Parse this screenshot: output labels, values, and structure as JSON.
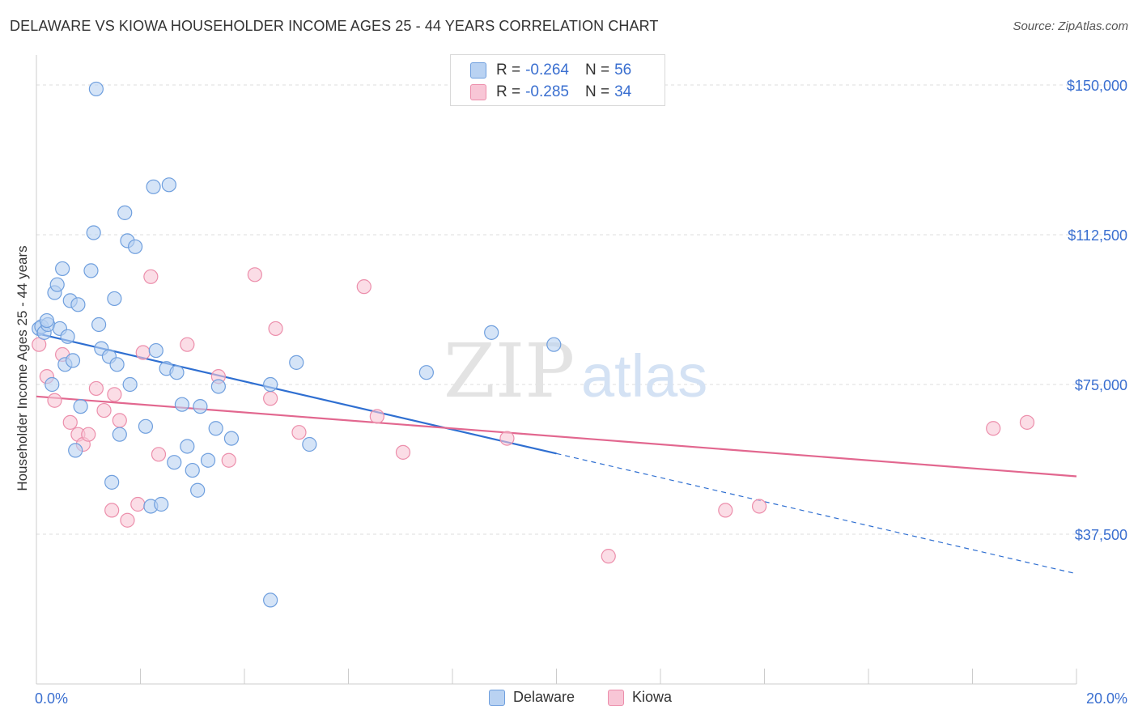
{
  "header": {
    "title": "DELAWARE VS KIOWA HOUSEHOLDER INCOME AGES 25 - 44 YEARS CORRELATION CHART",
    "source": "Source: ZipAtlas.com"
  },
  "watermark": {
    "part1": "ZIP",
    "part2": "atlas"
  },
  "legend": {
    "r_label": "R =",
    "n_label": "N =",
    "rows": [
      {
        "r": "-0.264",
        "n": "56"
      },
      {
        "r": "-0.285",
        "n": "34"
      }
    ]
  },
  "chart_data": {
    "type": "scatter",
    "title": "DELAWARE VS KIOWA HOUSEHOLDER INCOME AGES 25 - 44 YEARS CORRELATION CHART",
    "xlabel": "",
    "ylabel": "Householder Income Ages 25 - 44 years",
    "xlim": [
      0,
      20
    ],
    "ylim": [
      0,
      157500
    ],
    "x_tick_labels": [
      "0.0%",
      "20.0%"
    ],
    "y_ticks": [
      37500,
      75000,
      112500,
      150000
    ],
    "y_tick_labels": [
      "$37,500",
      "$75,000",
      "$112,500",
      "$150,000"
    ],
    "grid": "horizontal dashed",
    "legend_position": "top-center",
    "colors": {
      "delaware_fill": "#b9d2f2",
      "delaware_stroke": "#6f9fde",
      "delaware_line": "#2f6fd1",
      "kiowa_fill": "#f8c6d6",
      "kiowa_stroke": "#ec8eab",
      "kiowa_line": "#e2678f",
      "axis_text": "#3a6fd0"
    },
    "series": [
      {
        "name": "Delaware",
        "r": -0.264,
        "n": 56,
        "trend": {
          "x0": 0.0,
          "y0": 87800,
          "x1": 10.0,
          "y1": 57700,
          "dashed_to_x": 20.0,
          "dashed_to_y": 27600
        },
        "points": [
          [
            1.15,
            149000
          ],
          [
            0.05,
            89000
          ],
          [
            0.1,
            89500
          ],
          [
            0.15,
            88000
          ],
          [
            0.22,
            90000
          ],
          [
            0.3,
            75000
          ],
          [
            0.2,
            91000
          ],
          [
            0.35,
            98000
          ],
          [
            0.4,
            100000
          ],
          [
            0.45,
            89000
          ],
          [
            0.5,
            104000
          ],
          [
            0.55,
            80000
          ],
          [
            0.6,
            87000
          ],
          [
            0.65,
            96000
          ],
          [
            0.7,
            81000
          ],
          [
            0.75,
            58500
          ],
          [
            0.8,
            95000
          ],
          [
            0.85,
            69500
          ],
          [
            1.05,
            103500
          ],
          [
            1.1,
            113000
          ],
          [
            1.2,
            90000
          ],
          [
            1.25,
            84000
          ],
          [
            1.4,
            82000
          ],
          [
            1.5,
            96500
          ],
          [
            1.55,
            80000
          ],
          [
            1.6,
            62500
          ],
          [
            1.7,
            118000
          ],
          [
            1.75,
            111000
          ],
          [
            1.8,
            75000
          ],
          [
            1.9,
            109500
          ],
          [
            1.45,
            50500
          ],
          [
            2.1,
            64500
          ],
          [
            2.2,
            44500
          ],
          [
            2.25,
            124500
          ],
          [
            2.3,
            83500
          ],
          [
            2.4,
            45000
          ],
          [
            2.5,
            79000
          ],
          [
            2.55,
            125000
          ],
          [
            2.7,
            78000
          ],
          [
            2.65,
            55500
          ],
          [
            2.8,
            70000
          ],
          [
            2.9,
            59500
          ],
          [
            3.0,
            53500
          ],
          [
            3.15,
            69500
          ],
          [
            3.1,
            48500
          ],
          [
            3.3,
            56000
          ],
          [
            3.45,
            64000
          ],
          [
            3.5,
            74500
          ],
          [
            3.75,
            61500
          ],
          [
            4.5,
            75000
          ],
          [
            4.5,
            21000
          ],
          [
            5.0,
            80500
          ],
          [
            5.25,
            60000
          ],
          [
            7.5,
            78000
          ],
          [
            8.75,
            88000
          ],
          [
            9.95,
            85000
          ]
        ]
      },
      {
        "name": "Kiowa",
        "r": -0.285,
        "n": 34,
        "trend": {
          "x0": 0.0,
          "y0": 72000,
          "x1": 20.0,
          "y1": 52000
        },
        "points": [
          [
            0.05,
            85000
          ],
          [
            0.2,
            77000
          ],
          [
            0.35,
            71000
          ],
          [
            0.5,
            82500
          ],
          [
            0.65,
            65500
          ],
          [
            0.8,
            62500
          ],
          [
            0.9,
            60000
          ],
          [
            1.0,
            62500
          ],
          [
            1.15,
            74000
          ],
          [
            1.3,
            68500
          ],
          [
            1.45,
            43500
          ],
          [
            1.5,
            72500
          ],
          [
            1.6,
            66000
          ],
          [
            1.75,
            41000
          ],
          [
            1.95,
            45000
          ],
          [
            2.05,
            83000
          ],
          [
            2.2,
            102000
          ],
          [
            2.35,
            57500
          ],
          [
            2.9,
            85000
          ],
          [
            3.5,
            77000
          ],
          [
            3.7,
            56000
          ],
          [
            4.2,
            102500
          ],
          [
            4.5,
            71500
          ],
          [
            4.6,
            89000
          ],
          [
            5.05,
            63000
          ],
          [
            6.3,
            99500
          ],
          [
            6.55,
            67000
          ],
          [
            7.05,
            58000
          ],
          [
            9.05,
            61500
          ],
          [
            11.0,
            32000
          ],
          [
            13.25,
            43500
          ],
          [
            13.9,
            44500
          ],
          [
            18.4,
            64000
          ],
          [
            19.05,
            65500
          ]
        ]
      }
    ]
  }
}
